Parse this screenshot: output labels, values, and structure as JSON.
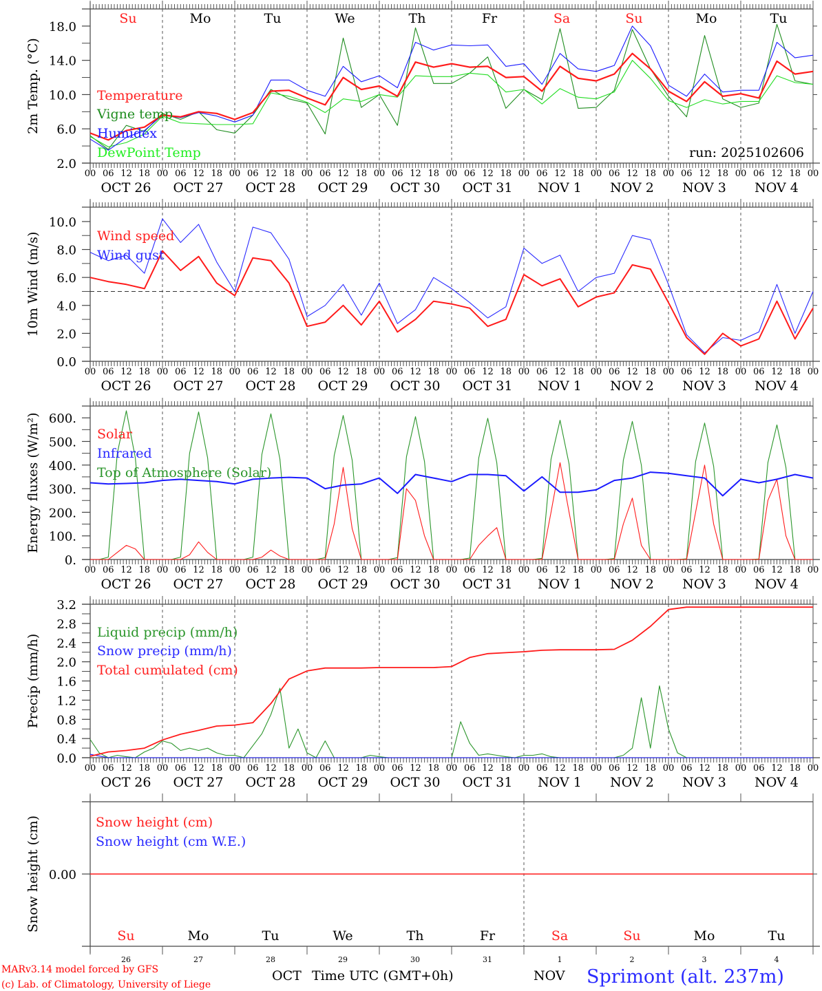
{
  "day_names": [
    "Su",
    "Mo",
    "Tu",
    "We",
    "Th",
    "Fr",
    "Sa",
    "Su",
    "Mo",
    "Tu"
  ],
  "day_name_colors": [
    "#ff2020",
    "#000000",
    "#000000",
    "#000000",
    "#000000",
    "#000000",
    "#ff2020",
    "#ff2020",
    "#000000",
    "#000000"
  ],
  "hour_labels": [
    "00",
    "06",
    "12",
    "18"
  ],
  "final_hour_label": "00",
  "dates": [
    "OCT 26",
    "OCT 27",
    "OCT 28",
    "OCT 29",
    "OCT 30",
    "OCT 31",
    "NOV  1",
    "NOV  2",
    "NOV  3",
    "NOV  4"
  ],
  "day_numbers": [
    "26",
    "27",
    "28",
    "29",
    "30",
    "31",
    "1",
    "2",
    "3",
    "4"
  ],
  "month_labels": [
    "OCT",
    "NOV"
  ],
  "xlabel": "Time UTC (GMT+0h)",
  "run_label": "run: 2025102606",
  "credits": [
    "MARv3.14 model forced by GFS",
    "(c) Lab. of Climatology, University of Liege"
  ],
  "site_label": "Sprimont (alt. 237m)",
  "chart_data": [
    {
      "type": "line",
      "id": "temp",
      "ylabel": "2m Temp. (°C)",
      "ylim": [
        2,
        20
      ],
      "yticks": [
        2,
        6,
        10,
        14,
        18
      ],
      "ytick_labels": [
        "2.0",
        "6.0",
        "10.0",
        "14.0",
        "18.0"
      ],
      "x_start": "2025-10-26 00 UTC",
      "series": [
        {
          "id": "vigne",
          "name": "Vigne temp",
          "color": "#1e8c1e",
          "step_hours": 6,
          "values": [
            5.2,
            3.6,
            6.4,
            5.7,
            7.8,
            7.1,
            8.0,
            5.9,
            5.5,
            7.6,
            10.6,
            9.5,
            9.0,
            5.4,
            16.6,
            8.5,
            10.0,
            6.4,
            17.8,
            11.3,
            11.3,
            12.5,
            14.4,
            8.4,
            10.6,
            9.4,
            17.7,
            8.4,
            8.5,
            10.5,
            17.6,
            13.0,
            9.8,
            7.4,
            16.9,
            9.5,
            8.5,
            9.0,
            18.2,
            11.6,
            11.2
          ]
        },
        {
          "id": "dew",
          "name": "DewPoint Temp",
          "color": "#22dd22",
          "step_hours": 6,
          "values": [
            5.1,
            3.9,
            4.4,
            5.4,
            7.5,
            6.7,
            6.6,
            6.5,
            6.5,
            6.6,
            10.2,
            9.8,
            9.1,
            7.9,
            9.5,
            9.2,
            10.0,
            9.7,
            12.2,
            12.1,
            12.1,
            12.5,
            12.3,
            10.3,
            10.6,
            8.9,
            10.7,
            9.7,
            9.5,
            10.3,
            14.0,
            11.9,
            9.3,
            8.5,
            9.4,
            8.9,
            9.2,
            9.2,
            12.2,
            11.4,
            11.2
          ]
        },
        {
          "id": "humidex",
          "name": "Humidex",
          "color": "#1a1aff",
          "step_hours": 6,
          "values": [
            4.8,
            3.5,
            5.0,
            5.8,
            7.6,
            7.3,
            7.9,
            7.5,
            6.8,
            7.6,
            11.7,
            11.7,
            10.5,
            9.8,
            13.3,
            11.5,
            12.2,
            10.8,
            16.1,
            15.2,
            15.8,
            15.7,
            15.8,
            13.3,
            13.6,
            11.2,
            14.8,
            13.0,
            12.7,
            13.4,
            18.0,
            15.7,
            11.1,
            9.8,
            12.4,
            10.3,
            10.5,
            10.5,
            16.1,
            14.3,
            14.6
          ]
        },
        {
          "id": "temperature",
          "name": "Temperature",
          "color": "#ff1a1a",
          "step_hours": 6,
          "values": [
            5.5,
            4.7,
            5.8,
            6.2,
            7.6,
            7.4,
            8.0,
            7.8,
            7.1,
            7.9,
            10.4,
            10.5,
            9.6,
            8.8,
            12.0,
            10.6,
            11.0,
            9.8,
            13.8,
            13.2,
            13.6,
            13.2,
            13.3,
            12.0,
            12.1,
            10.4,
            13.3,
            11.9,
            11.6,
            12.4,
            14.8,
            13.0,
            10.4,
            9.2,
            11.5,
            9.8,
            10.1,
            9.6,
            13.9,
            12.4,
            12.7
          ]
        }
      ],
      "legend": [
        "Temperature",
        "Vigne temp",
        "Humidex",
        "DewPoint Temp"
      ],
      "legend_colors": [
        "#ff2020",
        "#1e8c1e",
        "#1a1aff",
        "#22ee22"
      ],
      "legend_position": "middle-left"
    },
    {
      "type": "line",
      "id": "wind",
      "ylabel": "10m Wind (m/s)",
      "ylim": [
        0,
        11.03
      ],
      "yticks": [
        0,
        2,
        4,
        6,
        8,
        10
      ],
      "ytick_labels": [
        "0.0",
        "2.0",
        "4.0",
        "6.0",
        "8.0",
        "10.0"
      ],
      "reference_line": 5,
      "series": [
        {
          "id": "gust",
          "name": "Wind gust",
          "color": "#2a2aff",
          "step_hours": 6,
          "values": [
            7.8,
            7.2,
            7.6,
            6.3,
            10.2,
            8.5,
            9.8,
            7.1,
            5.0,
            9.6,
            9.2,
            7.3,
            3.2,
            4.0,
            5.5,
            3.3,
            5.6,
            2.7,
            3.7,
            6.0,
            5.2,
            4.2,
            3.1,
            3.9,
            8.1,
            7.0,
            7.6,
            5.0,
            6.0,
            6.3,
            9.0,
            8.7,
            5.5,
            1.9,
            0.6,
            1.7,
            1.5,
            2.1,
            5.5,
            2.0,
            5.0
          ]
        },
        {
          "id": "speed",
          "name": "Wind speed",
          "color": "#ff1a1a",
          "step_hours": 6,
          "values": [
            6.0,
            5.7,
            5.5,
            5.2,
            7.9,
            6.5,
            7.5,
            5.6,
            4.7,
            7.4,
            7.2,
            5.6,
            2.5,
            2.8,
            4.0,
            2.6,
            4.3,
            2.1,
            3.0,
            4.3,
            4.1,
            3.8,
            2.5,
            3.0,
            6.2,
            5.4,
            5.9,
            3.9,
            4.6,
            4.9,
            6.9,
            6.6,
            4.2,
            1.7,
            0.5,
            2.0,
            1.1,
            1.6,
            4.3,
            1.6,
            3.8
          ]
        }
      ],
      "legend": [
        "Wind speed",
        "Wind gust"
      ],
      "legend_colors": [
        "#ff2020",
        "#2a2aff"
      ],
      "legend_position": "top-left"
    },
    {
      "type": "line",
      "id": "energy",
      "ylabel": "Energy fluxes (W/m²)",
      "ylim": [
        0,
        650
      ],
      "yticks": [
        0,
        100,
        200,
        300,
        400,
        500,
        600
      ],
      "ytick_labels": [
        "0.",
        "100.",
        "200.",
        "300.",
        "400.",
        "500.",
        "600."
      ],
      "series": [
        {
          "id": "toa",
          "name": "Top of Atmosphere (Solar)",
          "color": "#2a952a",
          "step_hours": 3,
          "values": [
            0,
            0,
            10,
            450,
            630,
            430,
            0,
            0,
            0,
            0,
            10,
            450,
            625,
            430,
            0,
            0,
            0,
            0,
            10,
            445,
            617,
            425,
            0,
            0,
            0,
            0,
            8,
            440,
            610,
            420,
            0,
            0,
            0,
            0,
            8,
            435,
            605,
            415,
            0,
            0,
            0,
            0,
            6,
            430,
            598,
            410,
            0,
            0,
            0,
            0,
            5,
            425,
            590,
            405,
            0,
            0,
            0,
            0,
            4,
            420,
            585,
            400,
            0,
            0,
            0,
            0,
            3,
            415,
            578,
            395,
            0,
            0,
            0,
            0,
            2,
            410,
            570,
            390,
            0,
            0,
            0
          ]
        },
        {
          "id": "solar",
          "name": "Solar",
          "color": "#ff1a1a",
          "step_hours": 3,
          "values": [
            0,
            0,
            0,
            30,
            60,
            45,
            0,
            0,
            0,
            0,
            0,
            20,
            75,
            30,
            0,
            0,
            0,
            0,
            0,
            10,
            40,
            15,
            0,
            0,
            0,
            0,
            0,
            150,
            390,
            130,
            0,
            0,
            0,
            0,
            0,
            300,
            250,
            100,
            0,
            0,
            0,
            0,
            0,
            60,
            100,
            135,
            0,
            0,
            0,
            0,
            0,
            200,
            410,
            200,
            0,
            0,
            0,
            0,
            0,
            150,
            260,
            60,
            0,
            0,
            0,
            0,
            0,
            200,
            400,
            150,
            0,
            0,
            0,
            0,
            0,
            250,
            340,
            100,
            0,
            0,
            0
          ]
        },
        {
          "id": "infrared",
          "name": "Infrared",
          "color": "#1a1aff",
          "step_hours": 6,
          "values": [
            325,
            320,
            322,
            325,
            335,
            340,
            335,
            330,
            320,
            340,
            345,
            348,
            345,
            300,
            315,
            320,
            345,
            280,
            360,
            345,
            330,
            360,
            360,
            355,
            290,
            350,
            285,
            285,
            295,
            335,
            345,
            370,
            365,
            355,
            345,
            270,
            340,
            325,
            340,
            360,
            345
          ]
        }
      ],
      "legend": [
        "Solar",
        "Infrared",
        "Top of Atmosphere (Solar)"
      ],
      "legend_colors": [
        "#ff2020",
        "#2a2aff",
        "#2a952a"
      ],
      "legend_position": "top-left"
    },
    {
      "type": "line",
      "id": "precip",
      "ylabel": "Precip (mm/h)",
      "ylim": [
        0,
        3.2
      ],
      "yticks": [
        0,
        0.4,
        0.8,
        1.2,
        1.6,
        2.0,
        2.4,
        2.8,
        3.2
      ],
      "ytick_labels": [
        "0.0",
        "0.4",
        "0.8",
        "1.2",
        "1.6",
        "2.0",
        "2.4",
        "2.8",
        "3.2"
      ],
      "series": [
        {
          "id": "liquid",
          "name": "Liquid precip (mm/h)",
          "color": "#2a952a",
          "step_hours": 3,
          "values": [
            0.38,
            0.1,
            0.0,
            0.05,
            0.02,
            0.0,
            0.12,
            0.2,
            0.35,
            0.3,
            0.15,
            0.2,
            0.15,
            0.2,
            0.1,
            0.05,
            0.05,
            0.0,
            0.25,
            0.5,
            0.9,
            1.45,
            0.2,
            0.6,
            0.1,
            0.0,
            0.35,
            0.0,
            0.0,
            0.0,
            0.0,
            0.05,
            0.02,
            0,
            0,
            0,
            0,
            0,
            0,
            0,
            0,
            0.75,
            0.3,
            0.05,
            0.08,
            0.05,
            0.02,
            0,
            0.05,
            0.05,
            0.08,
            0.02,
            0,
            0,
            0,
            0,
            0,
            0,
            0,
            0.05,
            0.2,
            1.25,
            0.2,
            1.5,
            0.6,
            0.1,
            0,
            0,
            0,
            0,
            0,
            0,
            0,
            0,
            0,
            0,
            0,
            0,
            0,
            0,
            0
          ]
        },
        {
          "id": "snow",
          "name": "Snow precip (mm/h)",
          "color": "#1a1aff",
          "step_hours": 6,
          "values": [
            0.07,
            0,
            0,
            0,
            0,
            0,
            0,
            0,
            0,
            0,
            0,
            0,
            0,
            0,
            0,
            0,
            0,
            0,
            0,
            0,
            0,
            0,
            0,
            0,
            0,
            0,
            0,
            0,
            0,
            0,
            0,
            0,
            0,
            0,
            0,
            0,
            0,
            0,
            0,
            0,
            0
          ]
        },
        {
          "id": "cumul",
          "name": "Total cumulated (cm)",
          "color": "#ff1a1a",
          "step_hours": 6,
          "values": [
            0.03,
            0.12,
            0.15,
            0.2,
            0.37,
            0.49,
            0.57,
            0.66,
            0.68,
            0.73,
            1.13,
            1.64,
            1.81,
            1.87,
            1.87,
            1.87,
            1.88,
            1.88,
            1.88,
            1.88,
            1.9,
            2.09,
            2.17,
            2.19,
            2.21,
            2.24,
            2.25,
            2.25,
            2.25,
            2.26,
            2.45,
            2.74,
            3.09,
            3.14,
            3.14,
            3.14,
            3.14,
            3.14,
            3.14,
            3.14,
            3.14
          ]
        }
      ],
      "legend": [
        "Liquid precip (mm/h)",
        "Snow precip (mm/h)",
        "Total cumulated (cm)"
      ],
      "legend_colors": [
        "#2a952a",
        "#2a2aff",
        "#ff2020"
      ],
      "legend_position": "top-left"
    },
    {
      "type": "line",
      "id": "snowh",
      "ylabel": "Snow height (cm)",
      "ylim": [
        -1,
        1
      ],
      "yticks": [
        0
      ],
      "ytick_labels": [
        "0.00"
      ],
      "series": [
        {
          "id": "snow_we",
          "name": "Snow height (cm W.E.)",
          "color": "#1a1aff",
          "step_hours": 240,
          "values": [
            0,
            0
          ]
        },
        {
          "id": "snow_cm",
          "name": "Snow height (cm)",
          "color": "#ff1a1a",
          "step_hours": 240,
          "values": [
            0,
            0
          ]
        }
      ],
      "legend": [
        "Snow height (cm)",
        "Snow height (cm W.E.)"
      ],
      "legend_colors": [
        "#ff2020",
        "#2a2aff"
      ],
      "legend_position": "top-left"
    }
  ]
}
